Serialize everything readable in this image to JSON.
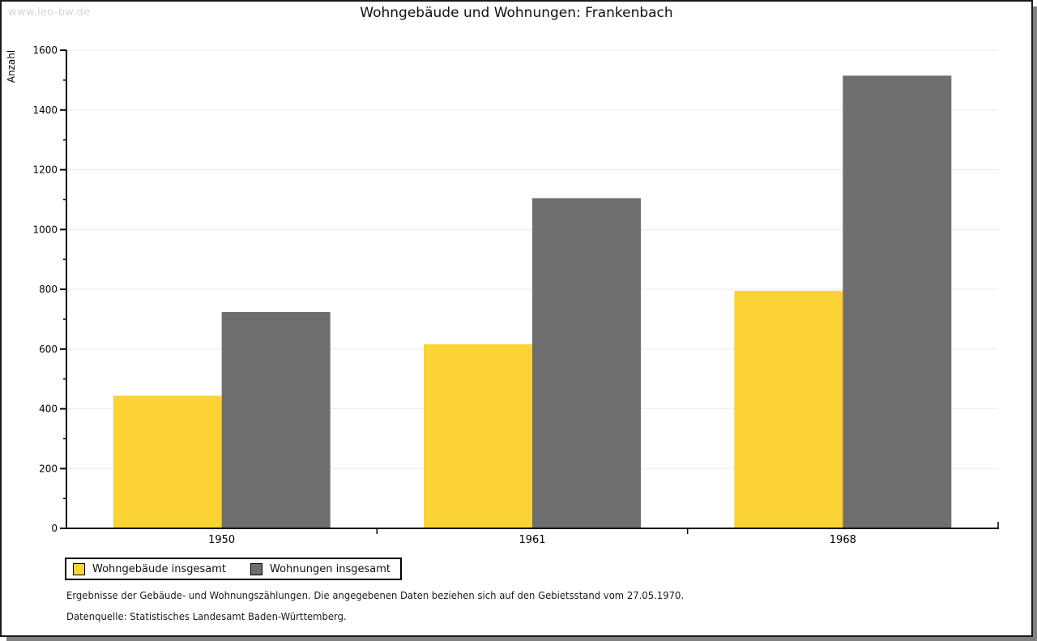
{
  "watermark": "www.leo-bw.de",
  "chart_data": {
    "type": "bar",
    "title": "Wohngebäude und Wohnungen: Frankenbach",
    "categories": [
      "1950",
      "1961",
      "1968"
    ],
    "series": [
      {
        "name": "Wohngebäude insgesamt",
        "color": "#FBD335",
        "values": [
          444,
          616,
          795
        ]
      },
      {
        "name": "Wohnungen insgesamt",
        "color": "#6E6E6E",
        "values": [
          724,
          1105,
          1515
        ]
      }
    ],
    "xlabel": "",
    "ylabel": "Anzahl",
    "ylim": [
      0,
      1600
    ],
    "ytick_step": 200,
    "yminor_step": 100,
    "grid": true,
    "legend_position": "bottom-left",
    "colors": {
      "grid": "#E8E8E8",
      "axis": "#000000",
      "background": "#FFFFFF"
    }
  },
  "footnotes": {
    "line1": "Ergebnisse der Gebäude- und Wohnungszählungen. Die angegebenen Daten beziehen sich auf den Gebietsstand vom 27.05.1970.",
    "line2": "Datenquelle: Statistisches Landesamt Baden-Württemberg."
  }
}
